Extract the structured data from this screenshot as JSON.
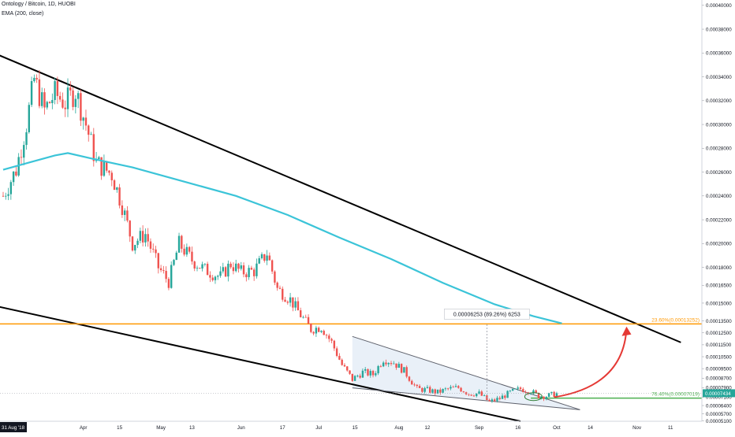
{
  "header": {
    "title": "Ontology / Bitcoin, 1D, HUOBI",
    "indicator": "EMA (200, close)"
  },
  "colors": {
    "up": "#26a69a",
    "down": "#ef5350",
    "ema": "#3bc4d8",
    "channel": "#000000",
    "fib_orange": "#ff9800",
    "fib_green": "#4caf50",
    "arrow": "#e53935",
    "triangle_fill": "#dfe9f5",
    "current_price_tag": "#26a69a"
  },
  "chart_data": {
    "type": "candlestick",
    "symbol": "Ontology / Bitcoin",
    "timeframe": "1D",
    "exchange": "HUOBI",
    "ylim": [
      5.08e-05,
      0.0004045
    ],
    "y_ticks": [
      "0.00040000",
      "0.00038000",
      "0.00036000",
      "0.00034000",
      "0.00032000",
      "0.00030000",
      "0.00028000",
      "0.00026000",
      "0.00024000",
      "0.00022000",
      "0.00020000",
      "0.00018000",
      "0.00016500",
      "0.00015000",
      "0.00013500",
      "0.00012500",
      "0.00011500",
      "0.00010500",
      "0.00009500",
      "0.00008700",
      "0.00007900",
      "0.00007100",
      "0.00006400",
      "0.00005700",
      "0.00005100"
    ],
    "x_ticks": [
      {
        "label": "31 Aug '18",
        "day": 0
      },
      {
        "label": "Apr",
        "day": 31
      },
      {
        "label": "15",
        "day": 45
      },
      {
        "label": "May",
        "day": 61
      },
      {
        "label": "13",
        "day": 73
      },
      {
        "label": "Jun",
        "day": 92
      },
      {
        "label": "17",
        "day": 108
      },
      {
        "label": "Jul",
        "day": 122
      },
      {
        "label": "15",
        "day": 136
      },
      {
        "label": "Aug",
        "day": 153
      },
      {
        "label": "12",
        "day": 164
      },
      {
        "label": "Sep",
        "day": 184
      },
      {
        "label": "16",
        "day": 199
      },
      {
        "label": "Oct",
        "day": 214
      },
      {
        "label": "14",
        "day": 227
      },
      {
        "label": "Nov",
        "day": 245
      },
      {
        "label": "11",
        "day": 258
      }
    ],
    "close_path": [
      [
        0,
        0.00024
      ],
      [
        5,
        0.000262
      ],
      [
        9,
        0.0003
      ],
      [
        12,
        0.000338
      ],
      [
        16,
        0.000312
      ],
      [
        20,
        0.000326
      ],
      [
        24,
        0.000318
      ],
      [
        28,
        0.000328
      ],
      [
        32,
        0.0003
      ],
      [
        36,
        0.000268
      ],
      [
        42,
        0.000258
      ],
      [
        46,
        0.000232
      ],
      [
        50,
        0.0002
      ],
      [
        55,
        0.000208
      ],
      [
        60,
        0.00018
      ],
      [
        64,
        0.000168
      ],
      [
        68,
        0.0002
      ],
      [
        73,
        0.000186
      ],
      [
        78,
        0.000178
      ],
      [
        84,
        0.000172
      ],
      [
        88,
        0.000183
      ],
      [
        92,
        0.000176
      ],
      [
        97,
        0.000177
      ],
      [
        102,
        0.000192
      ],
      [
        106,
        0.000162
      ],
      [
        111,
        0.000153
      ],
      [
        115,
        0.00014
      ],
      [
        119,
        0.000128
      ],
      [
        123,
        0.00013
      ],
      [
        127,
        0.000117
      ],
      [
        131,
        9.8e-05
      ],
      [
        135,
        8.6e-05
      ],
      [
        139,
        9.2e-05
      ],
      [
        143,
        9e-05
      ],
      [
        147,
        0.000103
      ],
      [
        151,
        0.0001
      ],
      [
        155,
        9.3e-05
      ],
      [
        160,
        7.8e-05
      ],
      [
        164,
        7.7e-05
      ],
      [
        168,
        7.5e-05
      ],
      [
        172,
        7.8e-05
      ],
      [
        176,
        7.9e-05
      ],
      [
        180,
        7.4e-05
      ],
      [
        184,
        7.4e-05
      ],
      [
        188,
        6.7e-05
      ],
      [
        192,
        7e-05
      ],
      [
        196,
        7.5e-05
      ],
      [
        200,
        7.8e-05
      ],
      [
        204,
        7.6e-05
      ],
      [
        207,
        7.2e-05
      ],
      [
        210,
        7.2e-05
      ],
      [
        214,
        7.4e-05
      ]
    ],
    "series": [
      {
        "name": "EMA (200, close)",
        "points": [
          [
            0,
            0.000262
          ],
          [
            10,
            0.000268
          ],
          [
            20,
            0.000274
          ],
          [
            25,
            0.000276
          ],
          [
            35,
            0.000271
          ],
          [
            50,
            0.000264
          ],
          [
            70,
            0.000252
          ],
          [
            90,
            0.00024
          ],
          [
            110,
            0.000224
          ],
          [
            130,
            0.000205
          ],
          [
            150,
            0.000187
          ],
          [
            170,
            0.000167
          ],
          [
            190,
            0.000149
          ],
          [
            205,
            0.000139
          ],
          [
            216,
            0.000133
          ]
        ]
      }
    ],
    "trendlines": [
      {
        "name": "upper-channel",
        "from": [
          -8,
          0.000364
        ],
        "to": [
          262,
          0.000117
        ]
      },
      {
        "name": "lower-channel",
        "from": [
          -8,
          0.00015
        ],
        "to": [
          200,
          5.08e-05
        ]
      },
      {
        "name": "triangle-top",
        "from": [
          135,
          0.000122
        ],
        "to": [
          223,
          6.05e-05
        ]
      },
      {
        "name": "triangle-bottom",
        "from": [
          135,
          7.88e-05
        ],
        "to": [
          223,
          6.05e-05
        ]
      }
    ],
    "fib_levels": [
      {
        "label": "23.60%(0.00013252)",
        "value": 0.00013252,
        "color": "orange",
        "start_day": -7
      },
      {
        "label": "76.40%(0.00007019)",
        "value": 7.019e-05,
        "color": "green",
        "start_day": 204
      }
    ],
    "measure": {
      "label": "0.00006253 (89.26%) 6253",
      "day": 187,
      "from": 7e-05,
      "to": 0.00013252
    },
    "projection": {
      "from": [
        213,
        7.1e-05
      ],
      "to": [
        241,
        0.000129
      ]
    },
    "current_price": "0.00007434",
    "current_price_value": 7.434e-05
  }
}
